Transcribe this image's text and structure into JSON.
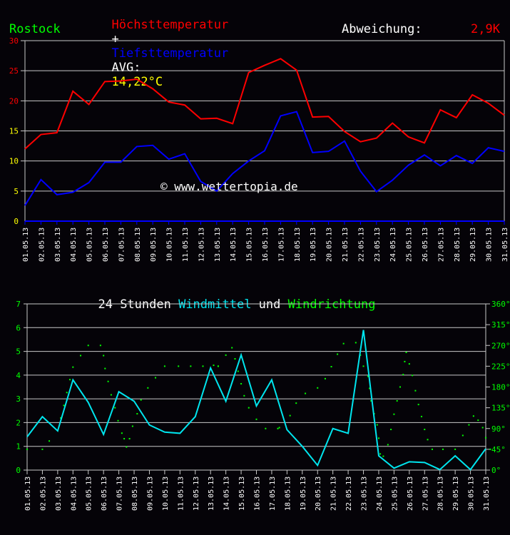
{
  "header": {
    "title_max": "Höchsttemperatur",
    "title_plus": "+",
    "title_min": "Tiefsttemperatur",
    "avg_label": "AVG:",
    "avg_value": "14,22°C",
    "location": "Rostock",
    "deviation_label": "Abweichung:",
    "deviation_value": "2,9K"
  },
  "colors": {
    "background": "#050308",
    "max_line": "#ff0000",
    "min_line": "#0000ff",
    "avg_value": "#ffff00",
    "location": "#00ff00",
    "wind_line": "#00e5ee",
    "wind_dir": "#00ff00",
    "grid": "#c8c8c8",
    "text": "#ffffff"
  },
  "watermark": "© www.wettertopia.de",
  "wind_title": {
    "part1": "24 Stunden ",
    "part2": "Windmittel",
    "part3": " und ",
    "part4": "Windrichtung"
  },
  "chart_data": [
    {
      "type": "line",
      "title": "Höchsttemperatur + Tiefsttemperatur",
      "subtitle": "Rostock — AVG: 14,22°C, Abweichung: 2,9K",
      "xlabel": "",
      "ylabel": "°C",
      "ylim": [
        0,
        30
      ],
      "yticks": [
        0,
        5,
        10,
        15,
        20,
        25,
        30
      ],
      "grid": true,
      "categories": [
        "01.05.13",
        "02.05.13",
        "03.05.13",
        "04.05.13",
        "05.05.13",
        "06.05.13",
        "07.05.13",
        "08.05.13",
        "09.05.13",
        "10.05.13",
        "11.05.13",
        "12.05.13",
        "13.05.13",
        "14.05.13",
        "15.05.13",
        "16.05.13",
        "17.05.13",
        "18.05.13",
        "19.05.13",
        "20.05.13",
        "21.05.13",
        "22.05.13",
        "23.05.13",
        "24.05.13",
        "25.05.13",
        "26.05.13",
        "27.05.13",
        "28.05.13",
        "29.05.13",
        "30.05.13",
        "31.05.13"
      ],
      "series": [
        {
          "name": "Höchsttemperatur",
          "color": "#ff0000",
          "values": [
            12.0,
            14.4,
            14.7,
            21.6,
            19.4,
            23.2,
            23.3,
            23.6,
            22.0,
            19.8,
            19.3,
            17.0,
            17.1,
            16.2,
            24.7,
            25.9,
            27.0,
            25.1,
            17.3,
            17.4,
            14.9,
            13.2,
            13.8,
            16.3,
            14.0,
            13.0,
            18.5,
            17.2,
            21.0,
            19.6,
            17.6
          ]
        },
        {
          "name": "Tiefsttemperatur",
          "color": "#0000ff",
          "values": [
            2.6,
            6.9,
            4.4,
            4.8,
            6.4,
            9.8,
            9.8,
            12.4,
            12.6,
            10.3,
            11.2,
            6.6,
            5.0,
            7.9,
            10.0,
            11.7,
            17.5,
            18.2,
            11.4,
            11.6,
            13.3,
            8.3,
            4.9,
            6.8,
            9.3,
            11.0,
            9.2,
            10.9,
            9.6,
            12.2,
            11.6
          ]
        }
      ]
    },
    {
      "type": "line",
      "title": "24 Stunden Windmittel und Windrichtung",
      "xlabel": "",
      "ylabel": "Windmittel",
      "ylim": [
        0,
        7
      ],
      "yticks": [
        0,
        1,
        2,
        3,
        4,
        5,
        6,
        7
      ],
      "y2label": "Windrichtung",
      "y2lim": [
        0,
        360
      ],
      "y2ticks": [
        "0°",
        "45°",
        "90°",
        "135°",
        "180°",
        "225°",
        "270°",
        "315°",
        "360°"
      ],
      "grid": true,
      "categories": [
        "01.05.13",
        "02.05.13",
        "03.05.13",
        "04.05.13",
        "05.05.13",
        "06.05.13",
        "07.05.13",
        "08.05.13",
        "09.05.13",
        "10.05.13",
        "11.05.13",
        "12.05.13",
        "13.05.13",
        "14.05.13",
        "15.05.13",
        "16.05.13",
        "17.05.13",
        "18.05.13",
        "19.05.13",
        "20.05.13",
        "21.05.13",
        "22.05.13",
        "23.05.13",
        "24.05.13",
        "25.05.13",
        "26.05.13",
        "27.05.13",
        "28.05.13",
        "29.05.13",
        "30.05.13",
        "31.05.13"
      ],
      "series": [
        {
          "name": "Windmittel",
          "color": "#00e5ee",
          "values": [
            1.4,
            2.25,
            1.65,
            3.8,
            2.85,
            1.5,
            3.3,
            2.9,
            1.9,
            1.6,
            1.55,
            2.25,
            4.3,
            2.9,
            4.85,
            2.7,
            3.8,
            1.7,
            1.0,
            0.2,
            1.75,
            1.55,
            5.9,
            0.6,
            0.08,
            0.35,
            0.32,
            0.02,
            0.6,
            0.02,
            0.9
          ]
        },
        {
          "name": "Windrichtung",
          "color": "#00ff00",
          "style": "dots",
          "axis": "y2",
          "points": [
            [
              1.0,
              45
            ],
            [
              2.0,
              45
            ],
            [
              2.45,
              63
            ],
            [
              3.0,
              86
            ],
            [
              3.2,
              113
            ],
            [
              3.4,
              140
            ],
            [
              3.6,
              168
            ],
            [
              3.8,
              196
            ],
            [
              4.0,
              223
            ],
            [
              4.5,
              248
            ],
            [
              5.0,
              270
            ],
            [
              5.8,
              270
            ],
            [
              6.0,
              248
            ],
            [
              6.1,
              220
            ],
            [
              6.3,
              192
            ],
            [
              6.5,
              163
            ],
            [
              6.75,
              135
            ],
            [
              6.95,
              107
            ],
            [
              7.2,
              80
            ],
            [
              7.35,
              68
            ],
            [
              7.5,
              50
            ],
            [
              7.7,
              68
            ],
            [
              7.9,
              95
            ],
            [
              8.2,
              122
            ],
            [
              8.45,
              152
            ],
            [
              8.9,
              178
            ],
            [
              9.4,
              200
            ],
            [
              10.0,
              225
            ],
            [
              10.9,
              225
            ],
            [
              11.7,
              225
            ],
            [
              12.5,
              225
            ],
            [
              13.5,
              225
            ],
            [
              13.5,
              225
            ],
            [
              13.2,
              227
            ],
            [
              14.0,
              249
            ],
            [
              14.4,
              265
            ],
            [
              14.6,
              241
            ],
            [
              14.8,
              214
            ],
            [
              15.0,
              187
            ],
            [
              15.2,
              161
            ],
            [
              15.5,
              135
            ],
            [
              16.0,
              110
            ],
            [
              16.6,
              90
            ],
            [
              17.4,
              90
            ],
            [
              17.5,
              92
            ],
            [
              18.2,
              118
            ],
            [
              18.6,
              145
            ],
            [
              19.2,
              166
            ],
            [
              20.0,
              178
            ],
            [
              20.5,
              198
            ],
            [
              20.9,
              224
            ],
            [
              21.3,
              251
            ],
            [
              21.7,
              274
            ],
            [
              22.5,
              276
            ],
            [
              22.8,
              249
            ],
            [
              23.0,
              225
            ],
            [
              23.3,
              203
            ],
            [
              23.4,
              177
            ],
            [
              23.5,
              150
            ],
            [
              23.7,
              122
            ],
            [
              23.9,
              98
            ],
            [
              24.0,
              69
            ],
            [
              24.1,
              35
            ],
            [
              24.3,
              30
            ],
            [
              24.6,
              55
            ],
            [
              24.8,
              88
            ],
            [
              25.0,
              121
            ],
            [
              25.2,
              150
            ],
            [
              25.4,
              180
            ],
            [
              25.6,
              207
            ],
            [
              25.7,
              235
            ],
            [
              25.8,
              255
            ],
            [
              26.0,
              230
            ],
            [
              26.2,
              205
            ],
            [
              26.4,
              172
            ],
            [
              26.6,
              142
            ],
            [
              26.8,
              116
            ],
            [
              27.0,
              88
            ],
            [
              27.2,
              66
            ],
            [
              27.5,
              45
            ],
            [
              28.2,
              45
            ],
            [
              29.0,
              45
            ],
            [
              29.5,
              75
            ],
            [
              29.9,
              98
            ],
            [
              30.2,
              117
            ],
            [
              30.5,
              108
            ],
            [
              30.8,
              92
            ],
            [
              31.0,
              70
            ],
            [
              31.3,
              45
            ]
          ]
        }
      ]
    }
  ]
}
